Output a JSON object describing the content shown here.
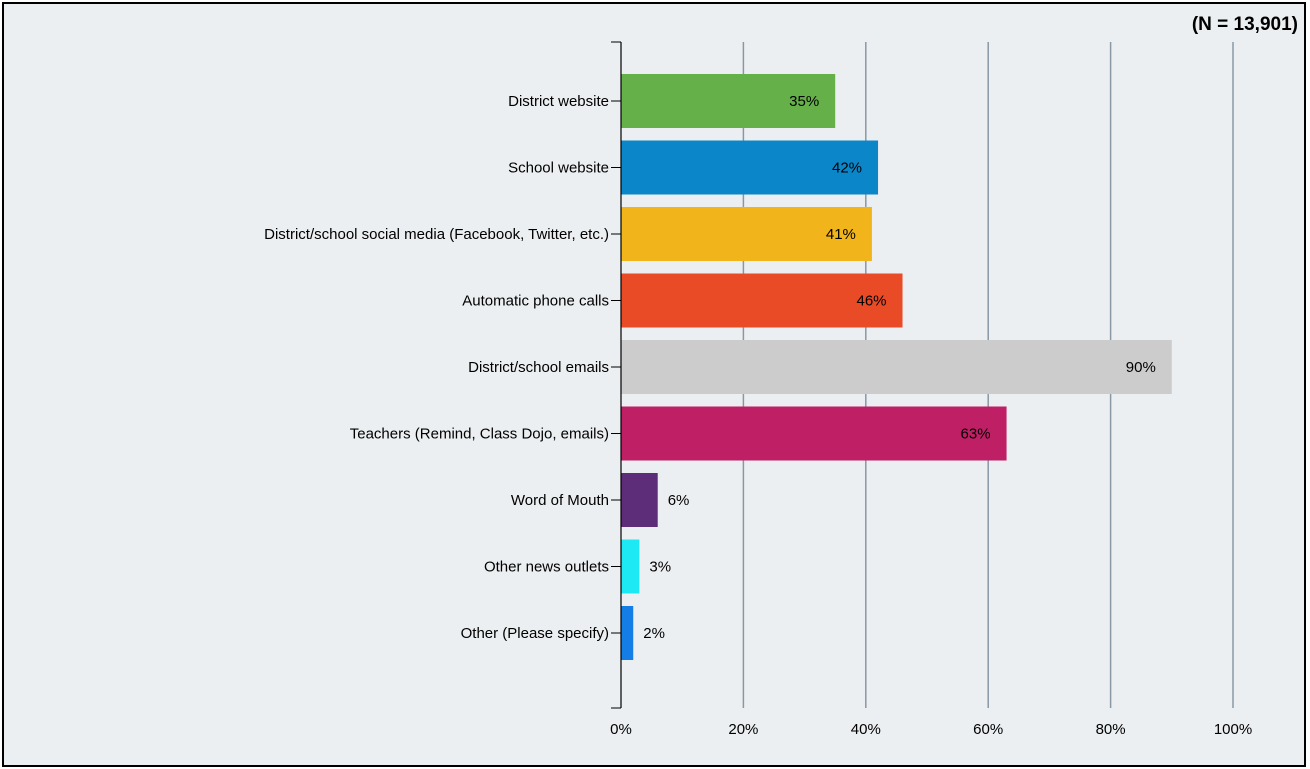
{
  "chart_data": {
    "type": "bar",
    "orientation": "horizontal",
    "annotation": "(N = 13,901)",
    "categories": [
      "District website",
      "School website",
      "District/school social media (Facebook, Twitter, etc.)",
      "Automatic phone calls",
      "District/school emails",
      "Teachers (Remind, Class Dojo, emails)",
      "Word of Mouth",
      "Other news outlets",
      "Other (Please specify)"
    ],
    "values": [
      35,
      42,
      41,
      46,
      90,
      63,
      6,
      3,
      2
    ],
    "data_labels": [
      "35%",
      "42%",
      "41%",
      "46%",
      "90%",
      "63%",
      "6%",
      "3%",
      "2%"
    ],
    "colors": [
      "#66b04a",
      "#0b86c8",
      "#f1b41b",
      "#e84b26",
      "#cccccc",
      "#be1f65",
      "#5e2d7a",
      "#1de9f5",
      "#157de6"
    ],
    "xlim": [
      0,
      100
    ],
    "xticks": [
      "0%",
      "20%",
      "40%",
      "60%",
      "80%",
      "100%"
    ],
    "grid": true,
    "legend": "none"
  }
}
